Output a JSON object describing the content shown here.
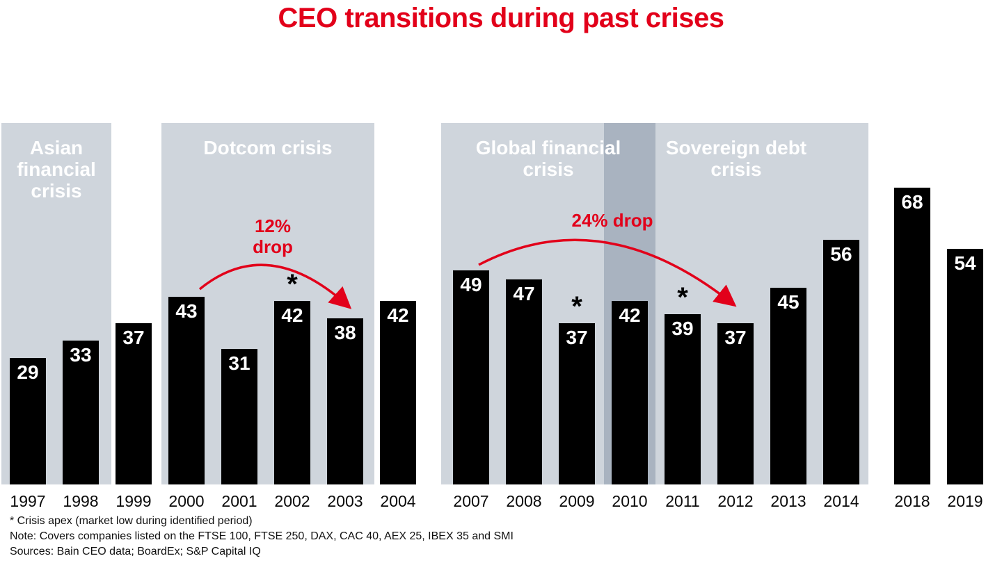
{
  "title": "CEO transitions during past crises",
  "colors": {
    "accent_red": "#e2001a",
    "bar_black": "#000000",
    "band_gray": "#cfd5dc",
    "band_overlap_gray": "#a9b3c0",
    "value_label_white": "#ffffff",
    "year_label_black": "#0a0a0a"
  },
  "chart_data": {
    "type": "bar",
    "title": "CEO transitions during past crises",
    "categories": [
      "1997",
      "1998",
      "1999",
      "2000",
      "2001",
      "2002",
      "2003",
      "2004",
      "2007",
      "2008",
      "2009",
      "2010",
      "2011",
      "2012",
      "2013",
      "2014",
      "2018",
      "2019"
    ],
    "values": [
      29,
      33,
      37,
      43,
      31,
      42,
      38,
      42,
      49,
      47,
      37,
      42,
      39,
      37,
      45,
      56,
      68,
      54
    ],
    "ylim": [
      0,
      80
    ],
    "grid": false,
    "legend": false,
    "apex_marker": "*",
    "apex_years": [
      "2002",
      "2009",
      "2011"
    ],
    "bands": [
      {
        "name": "asian-financial-crisis",
        "lines": [
          "Asian",
          "financial",
          "crisis"
        ],
        "years": [
          "1997",
          "1998"
        ]
      },
      {
        "name": "dotcom-crisis",
        "lines": [
          "Dotcom crisis"
        ],
        "years": [
          "2000",
          "2001",
          "2002",
          "2003"
        ]
      },
      {
        "name": "global-financial-crisis",
        "lines": [
          "Global financial",
          "crisis"
        ],
        "years": [
          "2007",
          "2008",
          "2009",
          "2010"
        ]
      },
      {
        "name": "sovereign-debt-crisis",
        "lines": [
          "Sovereign debt",
          "crisis"
        ],
        "years": [
          "2010",
          "2011",
          "2012",
          "2013",
          "2014"
        ]
      }
    ],
    "annotations": [
      {
        "lines": [
          "12%",
          "drop"
        ],
        "from_year": "2000",
        "to_year": "2003"
      },
      {
        "lines": [
          "24% drop"
        ],
        "from_year": "2007",
        "to_year": "2012"
      }
    ]
  },
  "footnotes": [
    "* Crisis apex (market low during identified period)",
    "Note: Covers companies listed on the FTSE 100, FTSE 250, DAX, CAC 40, AEX 25, IBEX 35 and SMI",
    "Sources: Bain CEO data; BoardEx; S&P Capital IQ"
  ]
}
